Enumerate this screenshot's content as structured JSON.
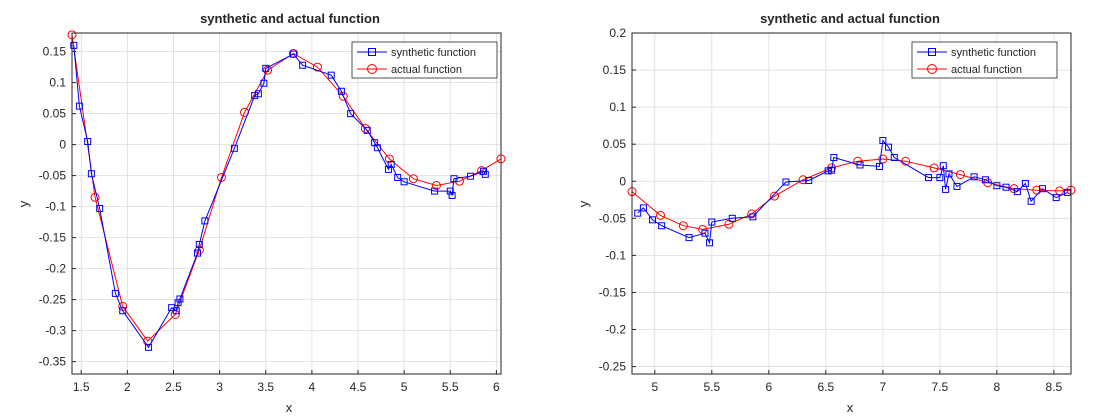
{
  "colors": {
    "synthetic": "#0000ff",
    "actual": "#ff0000",
    "grid": "#dcdcdc",
    "axis": "#262626"
  },
  "chart_data": [
    {
      "type": "line",
      "title": "synthetic and actual function",
      "xlabel": "x",
      "ylabel": "y",
      "xlim": [
        1.4,
        6.05
      ],
      "ylim": [
        -0.37,
        0.18
      ],
      "xticks": [
        1.5,
        2,
        2.5,
        3,
        3.5,
        4,
        4.5,
        5,
        5.5,
        6
      ],
      "xtick_labels": [
        "1.5",
        "2",
        "2.5",
        "3",
        "3.5",
        "4",
        "4.5",
        "5",
        "5.5",
        "6"
      ],
      "yticks": [
        -0.35,
        -0.3,
        -0.25,
        -0.2,
        -0.15,
        -0.1,
        -0.05,
        0,
        0.05,
        0.1,
        0.15
      ],
      "ytick_labels": [
        "-0.35",
        "-0.3",
        "-0.25",
        "-0.2",
        "-0.15",
        "-0.1",
        "-0.05",
        "0",
        "0.05",
        "0.1",
        "0.15"
      ],
      "grid": true,
      "legend_position": "top-right",
      "series": [
        {
          "name": "synthetic function",
          "marker": "square",
          "x": [
            1.42,
            1.48,
            1.57,
            1.61,
            1.7,
            1.87,
            1.95,
            2.23,
            2.48,
            2.53,
            2.55,
            2.57,
            2.76,
            2.78,
            2.84,
            3.16,
            3.38,
            3.42,
            3.48,
            3.5,
            3.8,
            3.9,
            4.21,
            4.32,
            4.42,
            4.6,
            4.68,
            4.71,
            4.83,
            4.86,
            4.93,
            5.0,
            5.33,
            5.5,
            5.52,
            5.54,
            5.72,
            5.86,
            5.88
          ],
          "y": [
            0.16,
            0.062,
            0.005,
            -0.047,
            -0.103,
            -0.24,
            -0.268,
            -0.327,
            -0.263,
            -0.268,
            -0.255,
            -0.249,
            -0.175,
            -0.161,
            -0.123,
            -0.006,
            0.079,
            0.082,
            0.099,
            0.123,
            0.146,
            0.128,
            0.112,
            0.086,
            0.05,
            0.023,
            0.003,
            -0.005,
            -0.04,
            -0.032,
            -0.053,
            -0.06,
            -0.075,
            -0.075,
            -0.082,
            -0.055,
            -0.051,
            -0.043,
            -0.048
          ]
        },
        {
          "name": "actual function",
          "marker": "circle",
          "x": [
            1.4,
            1.65,
            1.95,
            2.22,
            2.52,
            2.78,
            3.02,
            3.27,
            3.52,
            3.8,
            4.06,
            4.34,
            4.58,
            4.84,
            5.1,
            5.35,
            5.6,
            5.84,
            6.05
          ],
          "y": [
            0.177,
            -0.085,
            -0.261,
            -0.317,
            -0.274,
            -0.17,
            -0.053,
            0.052,
            0.12,
            0.147,
            0.125,
            0.078,
            0.026,
            -0.023,
            -0.055,
            -0.066,
            -0.059,
            -0.042,
            -0.023
          ]
        }
      ]
    },
    {
      "type": "line",
      "title": "synthetic and actual function",
      "xlabel": "x",
      "ylabel": "y",
      "xlim": [
        4.8,
        8.65
      ],
      "ylim": [
        -0.26,
        0.2
      ],
      "xticks": [
        5,
        5.5,
        6,
        6.5,
        7,
        7.5,
        8,
        8.5
      ],
      "xtick_labels": [
        "5",
        "5.5",
        "6",
        "6.5",
        "7",
        "7.5",
        "8",
        "8.5"
      ],
      "yticks": [
        -0.25,
        -0.2,
        -0.15,
        -0.1,
        -0.05,
        0,
        0.05,
        0.1,
        0.15,
        0.2
      ],
      "ytick_labels": [
        "-0.25",
        "-0.2",
        "-0.15",
        "-0.1",
        "-0.05",
        "0",
        "0.05",
        "0.1",
        "0.15",
        "0.2"
      ],
      "grid": true,
      "legend_position": "top-right",
      "series": [
        {
          "name": "synthetic function",
          "marker": "square",
          "x": [
            4.85,
            4.9,
            4.98,
            5.06,
            5.3,
            5.44,
            5.48,
            5.5,
            5.68,
            5.86,
            6.15,
            6.35,
            6.52,
            6.55,
            6.57,
            6.8,
            6.97,
            7.0,
            7.05,
            7.1,
            7.4,
            7.5,
            7.53,
            7.55,
            7.58,
            7.65,
            7.8,
            7.9,
            8.0,
            8.08,
            8.18,
            8.25,
            8.3,
            8.4,
            8.52,
            8.62
          ],
          "y": [
            -0.043,
            -0.036,
            -0.052,
            -0.06,
            -0.076,
            -0.07,
            -0.083,
            -0.055,
            -0.05,
            -0.048,
            -0.001,
            0.001,
            0.014,
            0.015,
            0.032,
            0.022,
            0.02,
            0.055,
            0.046,
            0.032,
            0.005,
            0.005,
            0.021,
            -0.011,
            0.01,
            -0.007,
            0.006,
            0.002,
            -0.006,
            -0.008,
            -0.014,
            -0.003,
            -0.027,
            -0.01,
            -0.022,
            -0.015
          ]
        },
        {
          "name": "actual function",
          "marker": "circle",
          "x": [
            4.8,
            5.05,
            5.25,
            5.42,
            5.65,
            5.85,
            6.05,
            6.3,
            6.55,
            6.78,
            7.0,
            7.2,
            7.45,
            7.68,
            7.92,
            8.15,
            8.35,
            8.55,
            8.65
          ],
          "y": [
            -0.014,
            -0.046,
            -0.06,
            -0.065,
            -0.058,
            -0.044,
            -0.02,
            0.002,
            0.018,
            0.027,
            0.03,
            0.027,
            0.018,
            0.009,
            -0.002,
            -0.01,
            -0.012,
            -0.013,
            -0.012
          ]
        }
      ]
    }
  ]
}
